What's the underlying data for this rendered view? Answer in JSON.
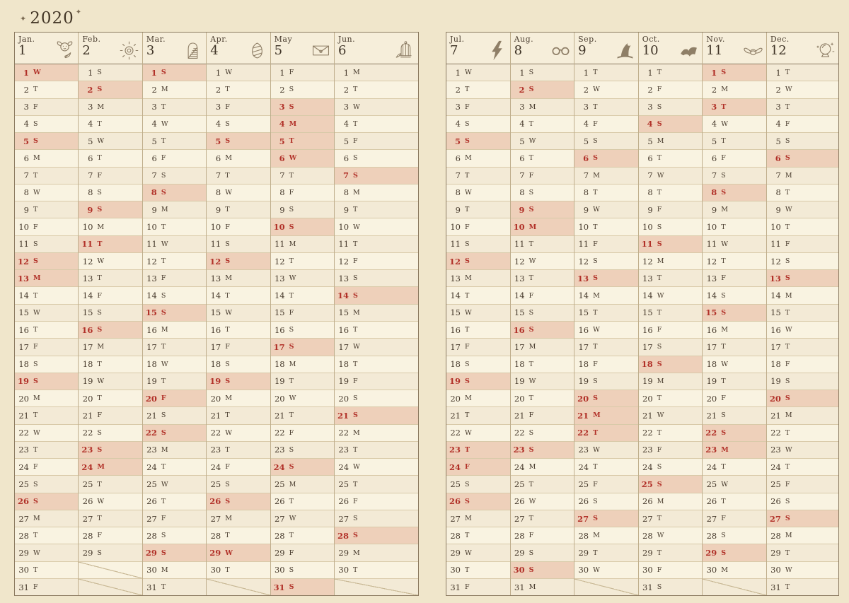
{
  "title": {
    "year": "2020",
    "star_left": "✦",
    "star_right": "✦"
  },
  "week_letters": [
    "S",
    "M",
    "T",
    "W",
    "T",
    "F",
    "S"
  ],
  "colors": {
    "bg": "#f0e6cb",
    "page": "#f9f3e1",
    "page-alt": "#f3ead6",
    "header": "#f6eeda",
    "highlight": "#eed0ba",
    "red": "#b13028",
    "ink": "#46392b",
    "border": "#8c7b61",
    "divider": "#bfae8c",
    "rowline": "#d9caa9",
    "icon": "#8f7f67",
    "diag": "#c9b996"
  },
  "pages": [
    {
      "months": [
        {
          "abbr": "Jan.",
          "num": "1",
          "icon": "dobby-elf-icon",
          "days": 31,
          "start": 3,
          "highlights": [
            1,
            5,
            12,
            13,
            19,
            26
          ]
        },
        {
          "abbr": "Feb.",
          "num": "2",
          "icon": "remembrall-icon",
          "days": 29,
          "start": 6,
          "highlights": [
            2,
            9,
            11,
            16,
            23,
            24
          ]
        },
        {
          "abbr": "Mar.",
          "num": "3",
          "icon": "arched-window-icon",
          "days": 31,
          "start": 0,
          "highlights": [
            1,
            8,
            15,
            20,
            22,
            29
          ]
        },
        {
          "abbr": "Apr.",
          "num": "4",
          "icon": "golden-egg-icon",
          "days": 30,
          "start": 3,
          "highlights": [
            5,
            12,
            19,
            26,
            29
          ]
        },
        {
          "abbr": "May",
          "num": "5",
          "icon": "letter-envelope-icon",
          "days": 31,
          "start": 5,
          "highlights": [
            3,
            4,
            5,
            6,
            10,
            17,
            24,
            31
          ]
        },
        {
          "abbr": "Jun.",
          "num": "6",
          "icon": "owl-cage-icon",
          "days": 30,
          "start": 1,
          "highlights": [
            7,
            14,
            21,
            28
          ]
        }
      ]
    },
    {
      "months": [
        {
          "abbr": "Jul.",
          "num": "7",
          "icon": "lightning-bolt-icon",
          "days": 31,
          "start": 3,
          "highlights": [
            5,
            12,
            19,
            23,
            24,
            26
          ]
        },
        {
          "abbr": "Aug.",
          "num": "8",
          "icon": "glasses-icon",
          "days": 31,
          "start": 6,
          "highlights": [
            2,
            9,
            10,
            16,
            23,
            30
          ]
        },
        {
          "abbr": "Sep.",
          "num": "9",
          "icon": "wizard-hat-icon",
          "days": 30,
          "start": 2,
          "highlights": [
            6,
            13,
            20,
            21,
            22,
            27
          ]
        },
        {
          "abbr": "Oct.",
          "num": "10",
          "icon": "open-book-icon",
          "days": 31,
          "start": 4,
          "highlights": [
            4,
            11,
            18,
            25
          ]
        },
        {
          "abbr": "Nov.",
          "num": "11",
          "icon": "golden-snitch-icon",
          "days": 30,
          "start": 0,
          "highlights": [
            1,
            3,
            8,
            15,
            22,
            23,
            29
          ]
        },
        {
          "abbr": "Dec.",
          "num": "12",
          "icon": "crystal-ball-icon",
          "days": 31,
          "start": 2,
          "highlights": [
            6,
            13,
            20,
            27
          ]
        }
      ]
    }
  ]
}
